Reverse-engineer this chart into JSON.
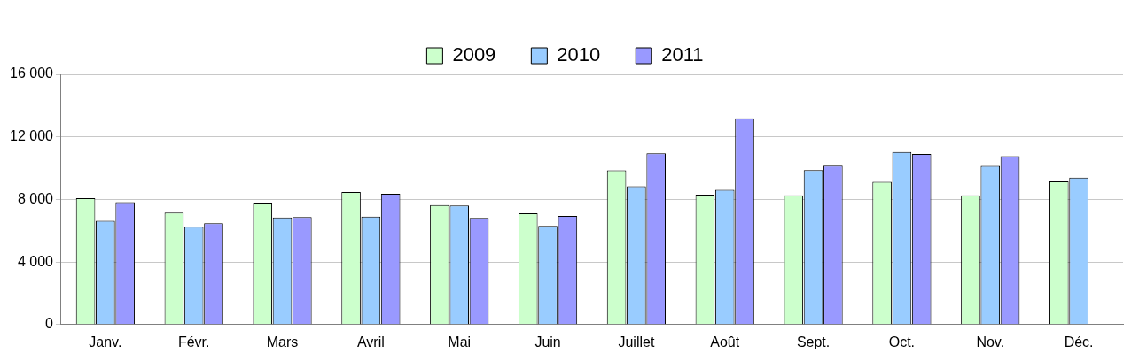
{
  "chart_data": {
    "type": "bar",
    "categories": [
      "Janv.",
      "Févr.",
      "Mars",
      "Avril",
      "Mai",
      "Juin",
      "Juillet",
      "Août",
      "Sept.",
      "Oct.",
      "Nov.",
      "Déc."
    ],
    "series": [
      {
        "name": "2009",
        "color": "#ccffcc",
        "values": [
          8080,
          7160,
          7800,
          8470,
          7640,
          7120,
          9860,
          8310,
          8260,
          9120,
          8260,
          9160
        ]
      },
      {
        "name": "2010",
        "color": "#99ccff",
        "values": [
          6640,
          6250,
          6850,
          6900,
          7610,
          6310,
          8850,
          8620,
          9880,
          11040,
          10140,
          9400
        ]
      },
      {
        "name": "2011",
        "color": "#9999ff",
        "values": [
          7830,
          6480,
          6880,
          8360,
          6820,
          6950,
          10950,
          13190,
          10160,
          10910,
          10760,
          null
        ]
      }
    ],
    "ylim": [
      0,
      16000
    ],
    "yticks": [
      {
        "value": 0,
        "label": "0"
      },
      {
        "value": 4000,
        "label": "4 000"
      },
      {
        "value": 8000,
        "label": "8 000"
      },
      {
        "value": 12000,
        "label": "12 000"
      },
      {
        "value": 16000,
        "label": "16 000"
      }
    ],
    "grid": "y",
    "legend": "top"
  }
}
